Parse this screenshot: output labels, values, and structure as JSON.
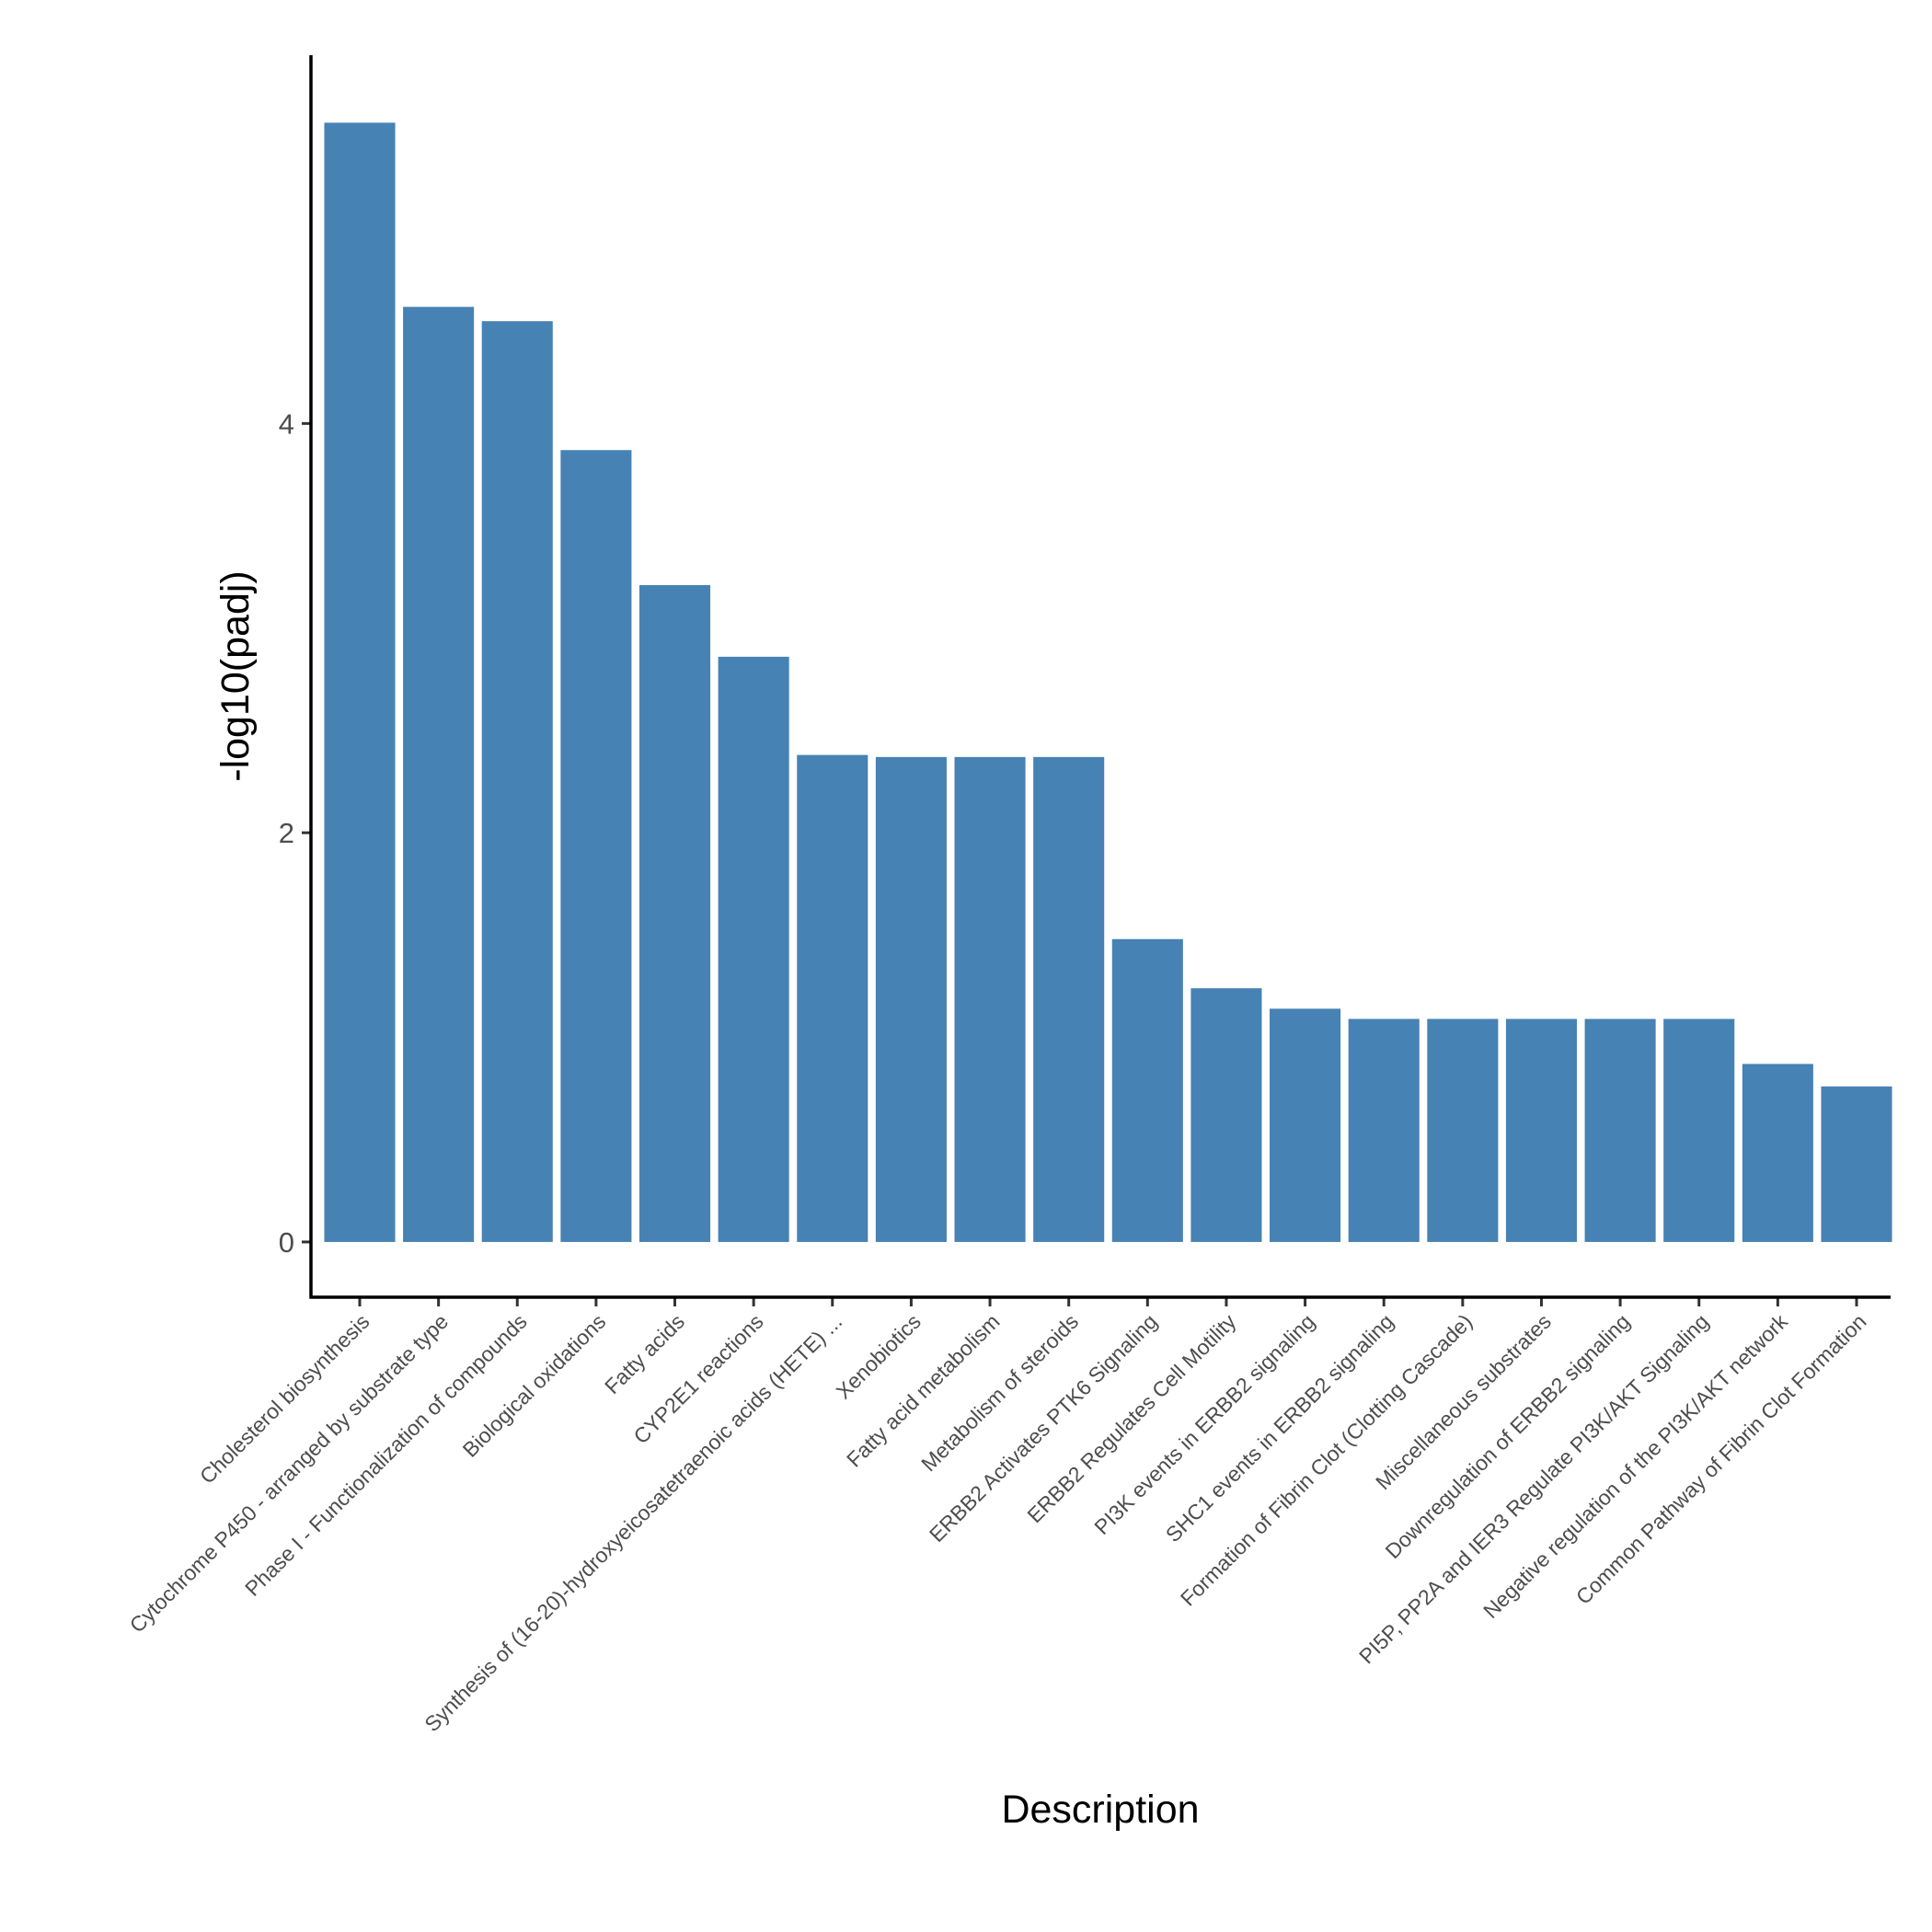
{
  "chart_data": {
    "type": "bar",
    "title": "",
    "xlabel": "Description",
    "ylabel": "-log10(padj)",
    "ylim": [
      -0.27,
      5.8
    ],
    "yticks": [
      0,
      2,
      4
    ],
    "grid": false,
    "bar_color": "#4682b4",
    "categories": [
      "Cholesterol biosynthesis",
      "Cytochrome P450 - arranged by substrate type",
      "Phase I - Functionalization of compounds",
      "Biological oxidations",
      "Fatty acids",
      "CYP2E1 reactions",
      "Synthesis of (16-20)-hydroxyeicosatetraenoic acids (HETE) ...",
      "Xenobiotics",
      "Fatty acid metabolism",
      "Metabolism of steroids",
      "ERBB2 Activates PTK6 Signaling",
      "ERBB2 Regulates Cell Motility",
      "PI3K events in ERBB2 signaling",
      "SHC1 events in ERBB2 signaling",
      "Formation of Fibrin Clot (Clotting Cascade)",
      "Miscellaneous substrates",
      "Downregulation of ERBB2 signaling",
      "PI5P, PP2A and IER3 Regulate PI3K/AKT Signaling",
      "Negative regulation of the PI3K/AKT network",
      "Common Pathway of Fibrin Clot Formation"
    ],
    "values": [
      5.47,
      4.57,
      4.5,
      3.87,
      3.21,
      2.86,
      2.38,
      2.37,
      2.37,
      2.37,
      1.48,
      1.24,
      1.14,
      1.09,
      1.09,
      1.09,
      1.09,
      1.09,
      0.87,
      0.76
    ]
  }
}
